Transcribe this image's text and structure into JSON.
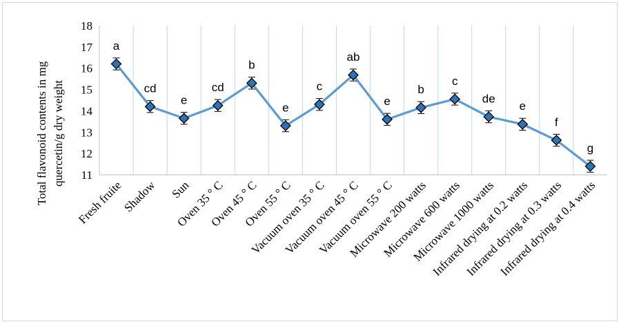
{
  "chart_data": {
    "type": "line",
    "title": "",
    "ylabel_line1": "Total flavonoid  contents in mg",
    "ylabel_line2": "quercetin/g  dry weight",
    "xlabel": "",
    "ylim": [
      11,
      18
    ],
    "yticks": [
      "11",
      "12",
      "13",
      "14",
      "15",
      "16",
      "17",
      "18"
    ],
    "grid": "vertical",
    "line_color": "#5b9bd5",
    "marker_color": "#2e74b5",
    "categories": [
      "Fresh fruite",
      "Shadow",
      "Sun",
      "Oven 35 ° C",
      "Oven 45 ° C",
      "Oven 55 ° C",
      "Vacuum oven 35 ° C",
      "Vacuum oven 45 ° C",
      "Vacuum oven 55 ° C",
      "Microwave 200 watts",
      "Microwave 600 watts",
      "Microwave 1000 watts",
      "Infrared drying at 0.2 watts",
      "Infrared drying at 0.3 watts",
      "Infrared drying at 0.4 watts"
    ],
    "values": [
      16.2,
      14.2,
      13.65,
      14.25,
      15.3,
      13.3,
      14.3,
      15.68,
      13.6,
      14.15,
      14.55,
      13.72,
      13.37,
      12.62,
      11.4
    ],
    "errors": [
      0.28,
      0.28,
      0.28,
      0.28,
      0.28,
      0.28,
      0.28,
      0.28,
      0.28,
      0.28,
      0.28,
      0.28,
      0.28,
      0.28,
      0.28
    ],
    "significance_letters": [
      "a",
      "cd",
      "e",
      "cd",
      "b",
      "e",
      "c",
      "ab",
      "e",
      "b",
      "c",
      "de",
      "e",
      "f",
      "g"
    ]
  }
}
